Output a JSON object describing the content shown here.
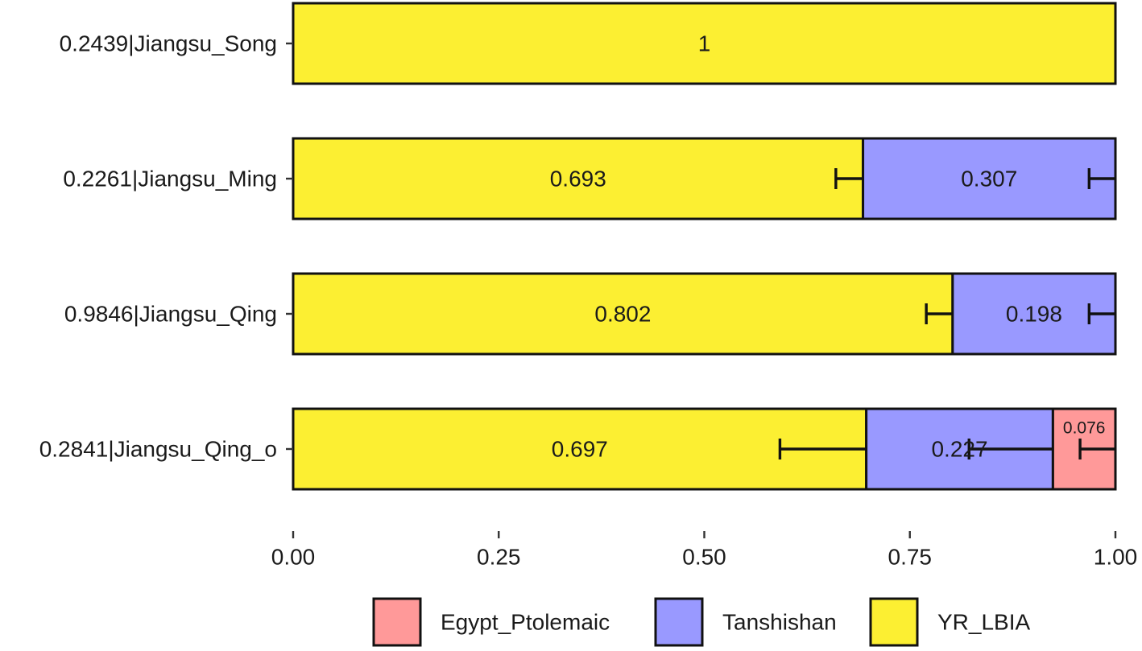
{
  "chart_data": {
    "type": "bar",
    "orientation": "horizontal",
    "stacked": true,
    "categories": [
      "0.2439|Jiangsu_Song",
      "0.2261|Jiangsu_Ming",
      "0.9846|Jiangsu_Qing",
      "0.2841|Jiangsu_Qing_o"
    ],
    "series": [
      {
        "name": "YR_LBIA",
        "color": "#FCEF32",
        "values": [
          1,
          0.693,
          0.802,
          0.697
        ],
        "labels": [
          "1",
          "0.693",
          "0.802",
          "0.697"
        ],
        "error": [
          null,
          0.033,
          0.032,
          0.105
        ]
      },
      {
        "name": "Tanshishan",
        "color": "#9999FF",
        "values": [
          0,
          0.307,
          0.198,
          0.227
        ],
        "labels": [
          "",
          "0.307",
          "0.198",
          "0.227"
        ],
        "error": [
          null,
          0.032,
          0.032,
          0.102
        ]
      },
      {
        "name": "Egypt_Ptolemaic",
        "color": "#FF9999",
        "values": [
          0,
          0,
          0,
          0.076
        ],
        "labels": [
          "",
          "",
          "",
          "0.076"
        ],
        "error": [
          null,
          null,
          null,
          0.043
        ]
      }
    ],
    "xlim": [
      0,
      1
    ],
    "xticks": [
      0,
      0.25,
      0.5,
      0.75,
      1
    ],
    "xtick_labels": [
      "0.00",
      "0.25",
      "0.50",
      "0.75",
      "1.00"
    ],
    "title": "",
    "xlabel": "",
    "ylabel": "",
    "grid": false,
    "legend": {
      "placement": "bottom",
      "entries": [
        "Egypt_Ptolemaic",
        "Tanshishan",
        "YR_LBIA"
      ]
    }
  }
}
